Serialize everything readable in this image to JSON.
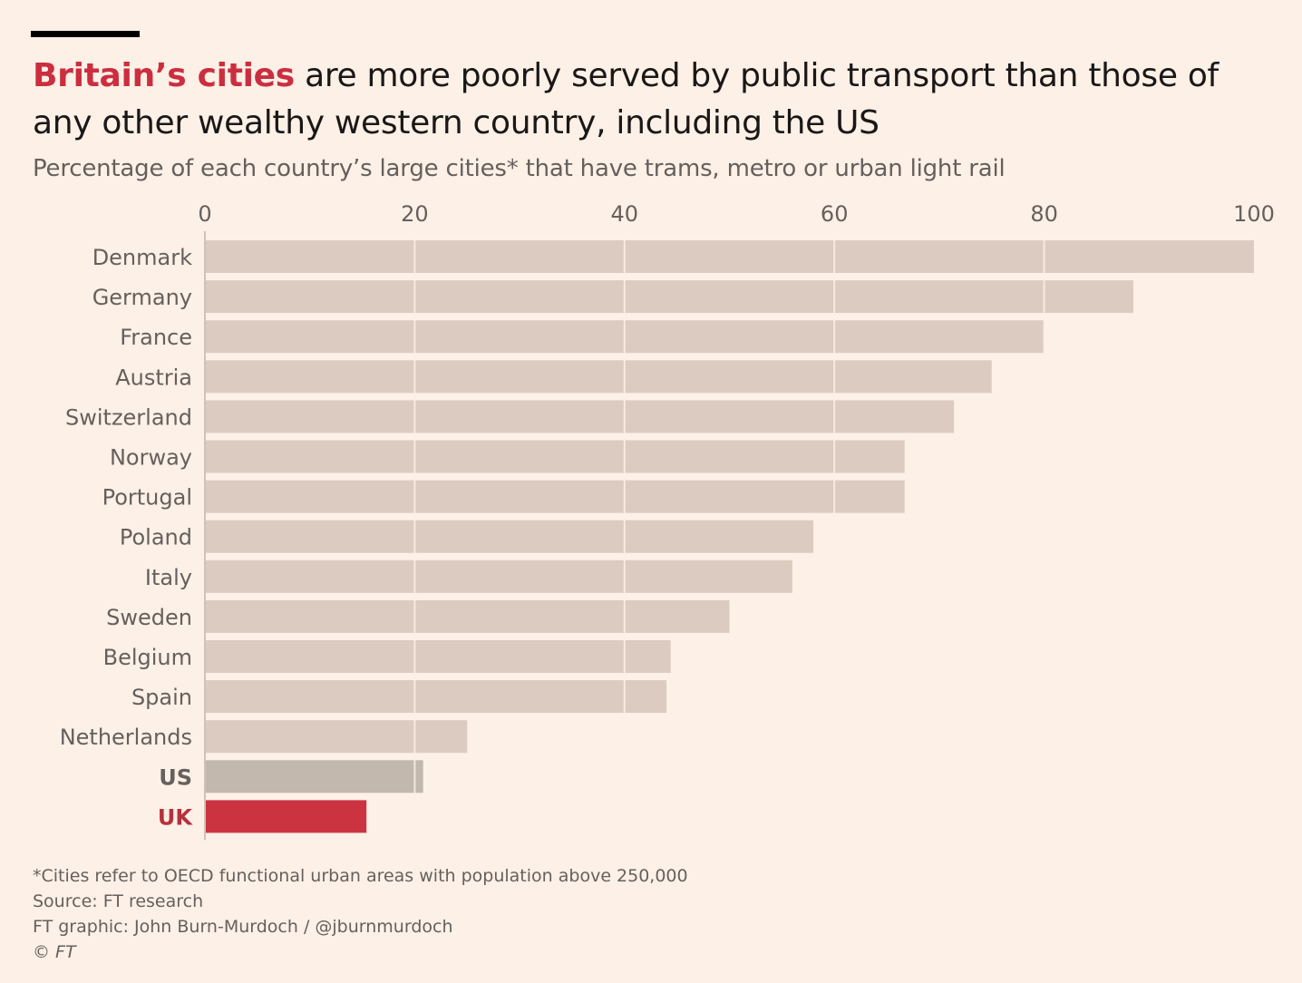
{
  "header": {
    "title_highlight": "Britain’s cities",
    "title_rest": " are more poorly served by public transport than those of any other wealthy western country, including the US",
    "subtitle": "Percentage of each country’s large cities* that have trams, metro or urban light rail"
  },
  "colors": {
    "bar_default": "#dccbc0",
    "bar_us": "#c2b8ad",
    "bar_uk": "#cc3341",
    "label_default": "#66605c",
    "label_us": "#66605c",
    "label_uk": "#b5323c",
    "gridline": "#fdf0e7"
  },
  "chart_data": {
    "type": "bar",
    "orientation": "horizontal",
    "xlim": [
      0,
      100
    ],
    "xticks": [
      0,
      20,
      40,
      60,
      80,
      100
    ],
    "categories": [
      "Denmark",
      "Germany",
      "France",
      "Austria",
      "Switzerland",
      "Norway",
      "Portugal",
      "Poland",
      "Italy",
      "Sweden",
      "Belgium",
      "Spain",
      "Netherlands",
      "US",
      "UK"
    ],
    "values": [
      100,
      88.5,
      80,
      75,
      71.4,
      66.7,
      66.7,
      58,
      56,
      50,
      44.4,
      44,
      25,
      20.8,
      15.4
    ],
    "highlight": {
      "US": "us",
      "UK": "uk"
    },
    "grid": true
  },
  "footer": {
    "note": "*Cities refer to OECD functional urban areas with population above 250,000",
    "source": "Source: FT research",
    "credit": "FT graphic: John Burn-Murdoch / @jburnmurdoch",
    "copyright": "© FT"
  }
}
